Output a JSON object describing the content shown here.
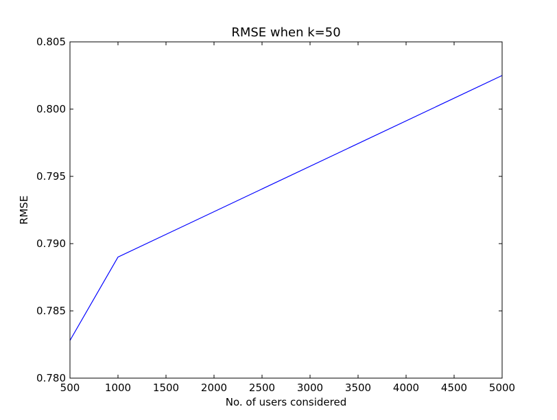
{
  "chart_data": {
    "type": "line",
    "title": "RMSE when k=50",
    "xlabel": "No. of users considered",
    "ylabel": "RMSE",
    "xlim": [
      500,
      5000
    ],
    "ylim": [
      0.78,
      0.805
    ],
    "xticks": [
      500,
      1000,
      1500,
      2000,
      2500,
      3000,
      3500,
      4000,
      4500,
      5000
    ],
    "xtick_labels": [
      "500",
      "1000",
      "1500",
      "2000",
      "2500",
      "3000",
      "3500",
      "4000",
      "4500",
      "5000"
    ],
    "yticks": [
      0.78,
      0.785,
      0.79,
      0.795,
      0.8,
      0.805
    ],
    "ytick_labels": [
      "0.780",
      "0.785",
      "0.790",
      "0.795",
      "0.800",
      "0.805"
    ],
    "grid": false,
    "series": [
      {
        "color": "#0000ff",
        "x": [
          500,
          1000,
          5000
        ],
        "y": [
          0.7828,
          0.789,
          0.8025
        ]
      }
    ]
  }
}
